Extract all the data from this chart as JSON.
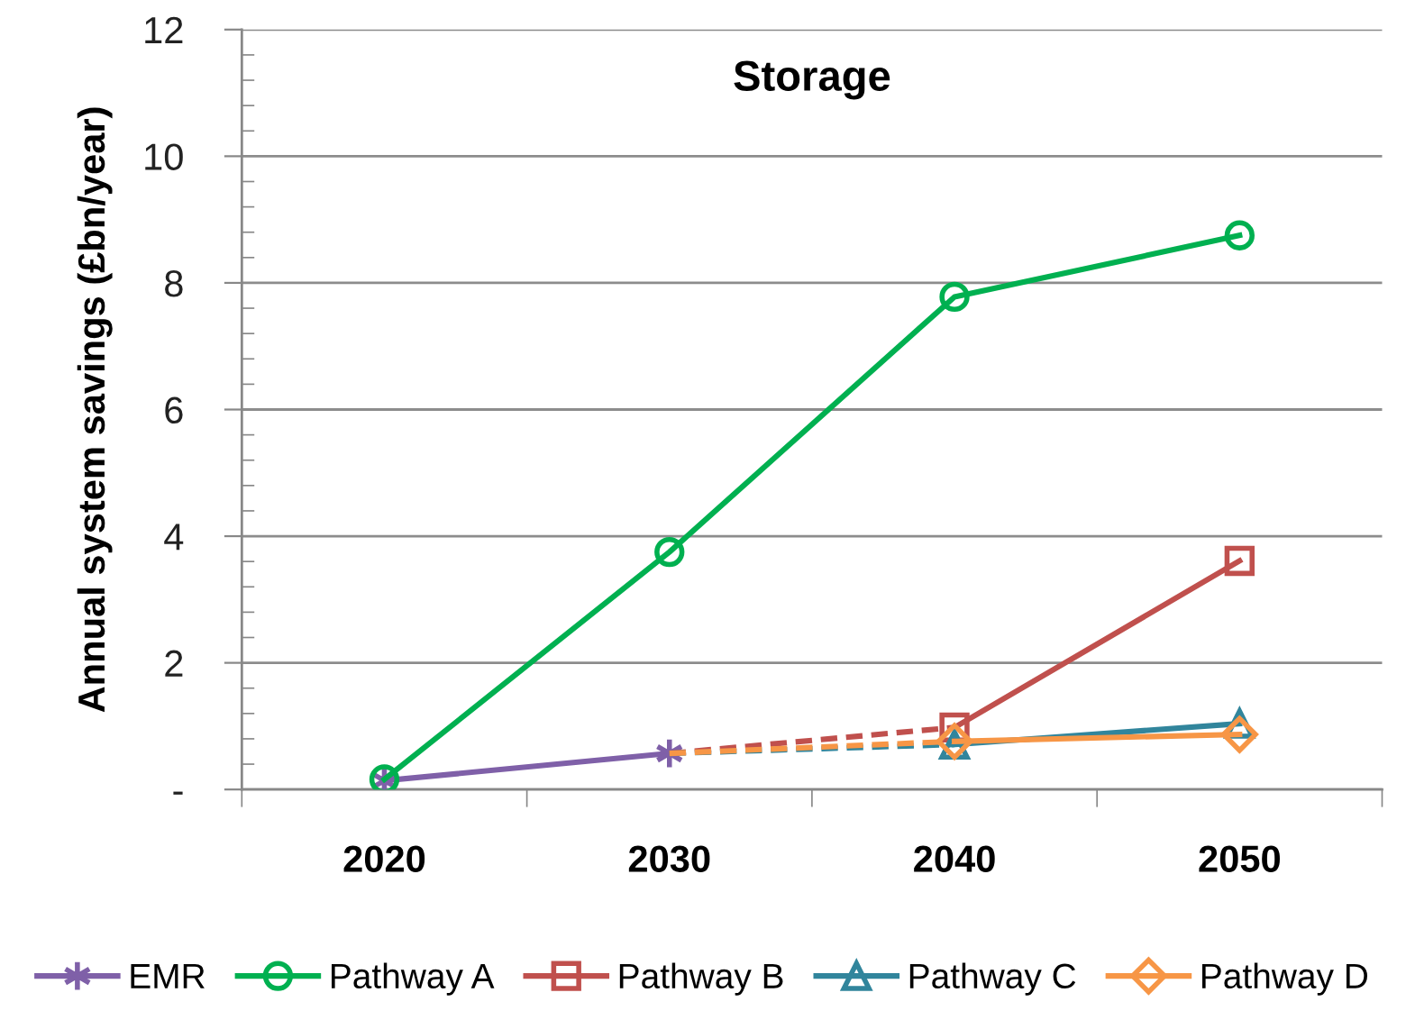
{
  "chart_data": {
    "type": "line",
    "title": "Storage",
    "ylabel": "Annual system savings (£bn/year)",
    "categories": [
      "2020",
      "2030",
      "2040",
      "2050"
    ],
    "ylim": [
      0,
      12
    ],
    "yticks": [
      {
        "value": 0,
        "label": "-"
      },
      {
        "value": 0.4,
        "label": null
      },
      {
        "value": 0.8,
        "label": null
      },
      {
        "value": 1.2,
        "label": null
      },
      {
        "value": 1.6,
        "label": null
      },
      2,
      {
        "value": 2.4,
        "label": null
      },
      {
        "value": 2.8,
        "label": null
      },
      {
        "value": 3.2,
        "label": null
      },
      {
        "value": 3.6,
        "label": null
      },
      4,
      {
        "value": 4.4,
        "label": null
      },
      {
        "value": 4.8,
        "label": null
      },
      {
        "value": 5.2,
        "label": null
      },
      {
        "value": 5.6,
        "label": null
      },
      6,
      {
        "value": 6.4,
        "label": null
      },
      {
        "value": 6.8,
        "label": null
      },
      {
        "value": 7.2,
        "label": null
      },
      {
        "value": 7.6,
        "label": null
      },
      8,
      {
        "value": 8.4,
        "label": null
      },
      {
        "value": 8.8,
        "label": null
      },
      {
        "value": 9.2,
        "label": null
      },
      {
        "value": 9.6,
        "label": null
      },
      10,
      {
        "value": 10.4,
        "label": null
      },
      {
        "value": 10.8,
        "label": null
      },
      {
        "value": 11.2,
        "label": null
      },
      {
        "value": 11.6,
        "label": null
      },
      12
    ],
    "grid": "y",
    "legend": "bottom",
    "line_style": "solid",
    "series": [
      {
        "name": "EMR",
        "color": "#7f60a8",
        "marker": "cross",
        "values": [
          0.14,
          0.57,
          null,
          null
        ]
      },
      {
        "name": "Pathway A",
        "color": "#00b050",
        "marker": "circle",
        "values": [
          0.16,
          3.75,
          7.78,
          8.75
        ]
      },
      {
        "color": "#c0504d",
        "line_style": "dashed",
        "values": [
          null,
          0.57,
          0.98,
          null
        ]
      },
      {
        "color": "#31859c",
        "line_style": "dashed",
        "values": [
          null,
          0.57,
          0.71,
          null
        ]
      },
      {
        "color": "#f79646",
        "line_style": "dashed",
        "values": [
          null,
          0.57,
          0.76,
          null
        ]
      },
      {
        "name": "Pathway B",
        "color": "#c0504d",
        "marker": "square",
        "values": [
          null,
          null,
          0.98,
          3.61
        ]
      },
      {
        "name": "Pathway C",
        "color": "#31859c",
        "marker": "triangle",
        "values": [
          null,
          null,
          0.71,
          1.04
        ]
      },
      {
        "name": "Pathway D",
        "color": "#f79646",
        "marker": "diamond",
        "values": [
          null,
          null,
          0.76,
          0.87
        ]
      }
    ]
  }
}
